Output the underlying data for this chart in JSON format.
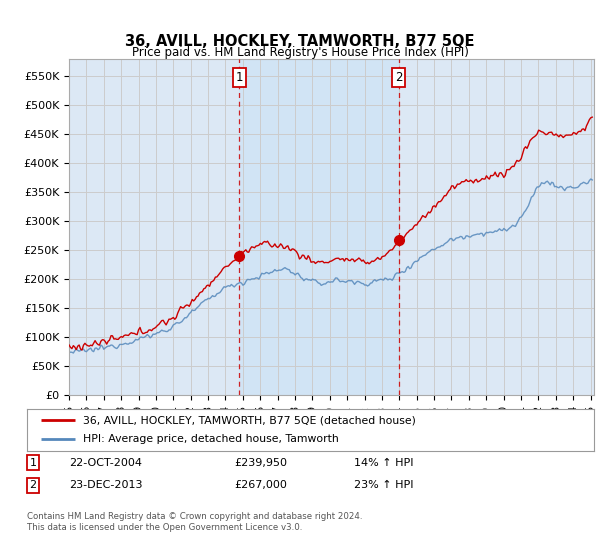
{
  "title": "36, AVILL, HOCKLEY, TAMWORTH, B77 5QE",
  "subtitle": "Price paid vs. HM Land Registry's House Price Index (HPI)",
  "ylabel_ticks": [
    "£0",
    "£50K",
    "£100K",
    "£150K",
    "£200K",
    "£250K",
    "£300K",
    "£350K",
    "£400K",
    "£450K",
    "£500K",
    "£550K"
  ],
  "ytick_values": [
    0,
    50000,
    100000,
    150000,
    200000,
    250000,
    300000,
    350000,
    400000,
    450000,
    500000,
    550000
  ],
  "ylim": [
    0,
    580000
  ],
  "legend_line1": "36, AVILL, HOCKLEY, TAMWORTH, B77 5QE (detached house)",
  "legend_line2": "HPI: Average price, detached house, Tamworth",
  "annotation1_label": "1",
  "annotation1_date": "22-OCT-2004",
  "annotation1_price": "£239,950",
  "annotation1_hpi": "14% ↑ HPI",
  "annotation2_label": "2",
  "annotation2_date": "23-DEC-2013",
  "annotation2_price": "£267,000",
  "annotation2_hpi": "23% ↑ HPI",
  "footer": "Contains HM Land Registry data © Crown copyright and database right 2024.\nThis data is licensed under the Open Government Licence v3.0.",
  "red_color": "#cc0000",
  "blue_color": "#5588bb",
  "vline_color": "#cc0000",
  "grid_color": "#cccccc",
  "background_color": "#dce8f5",
  "shaded_color": "#d0e4f5",
  "plot_bg_color": "#ffffff",
  "annotation_box_color": "#cc0000"
}
